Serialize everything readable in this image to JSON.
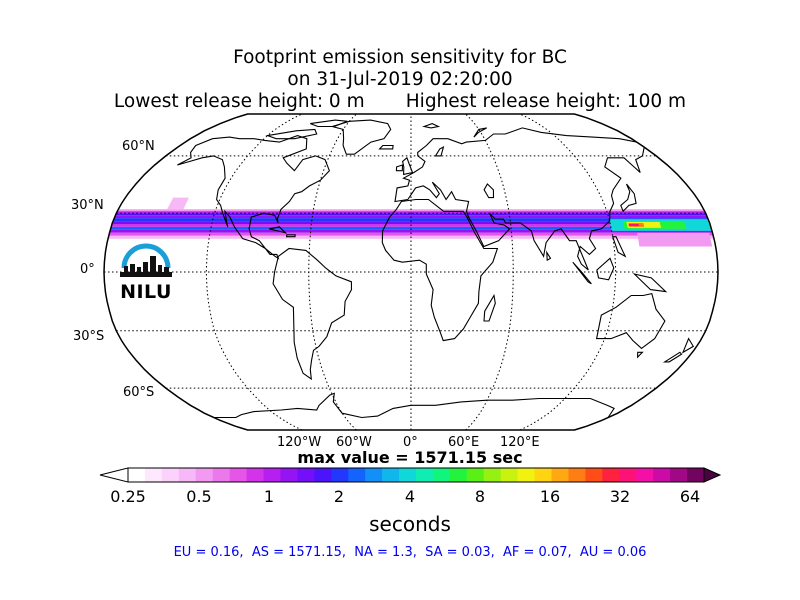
{
  "title": {
    "line1": "Footprint emission sensitivity for BC",
    "line2": "on 31-Jul-2019 02:20:00",
    "line3": "Lowest release height: 0 m       Highest release height: 100 m"
  },
  "map": {
    "projection": "robinson",
    "lat_labels": [
      "60°N",
      "30°N",
      "0°",
      "30°S",
      "60°S"
    ],
    "lon_labels": [
      "120°W",
      "60°W",
      "0°",
      "60°E",
      "120°E"
    ],
    "logo_text": "NILU",
    "logo_color": "#1a9fd8"
  },
  "max_value": "max value = 1571.15 sec",
  "colorbar": {
    "ticks": [
      "0.25",
      "0.5",
      "1",
      "2",
      "4",
      "8",
      "16",
      "32",
      "64"
    ],
    "unit": "seconds",
    "colors": [
      "#ffffff",
      "#fde8fd",
      "#fbd2fb",
      "#f6b8f6",
      "#f29af2",
      "#ec79ec",
      "#e455e8",
      "#d433ec",
      "#b71ef0",
      "#9514f4",
      "#7410f8",
      "#4b14fb",
      "#2337fd",
      "#1463fd",
      "#1390f7",
      "#11b7ec",
      "#11d8d8",
      "#10edb4",
      "#11f57d",
      "#23f33d",
      "#5bf015",
      "#96f012",
      "#c9f211",
      "#f2f210",
      "#ffd410",
      "#ffa812",
      "#ff7d15",
      "#ff4d18",
      "#ff2140",
      "#ff1277",
      "#f410a7",
      "#cc0aa6",
      "#a00885",
      "#720460"
    ]
  },
  "region_values": "EU = 0.16,  AS = 1571.15,  NA = 1.3,  SA = 0.03,  AF = 0.07,  AU = 0.06"
}
